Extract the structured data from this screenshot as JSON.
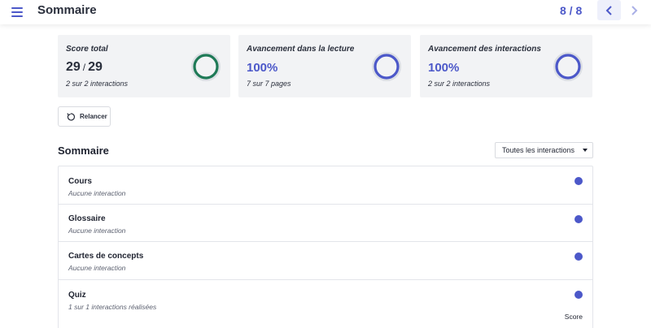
{
  "header": {
    "title": "Sommaire",
    "pager": "8 / 8",
    "menu_icon": "hamburger-menu-icon",
    "prev_icon": "chevron-left-icon",
    "next_icon": "chevron-right-icon"
  },
  "cards": [
    {
      "title": "Score total",
      "value_main": "29",
      "value_sep": "/",
      "value_total": "29",
      "subtitle": "2 sur 2 interactions",
      "ring_color": "#1f7a57",
      "progress": 1.0
    },
    {
      "title": "Avancement dans la lecture",
      "value": "100%",
      "subtitle": "7 sur 7 pages",
      "ring_color": "#4c58c9",
      "progress": 1.0
    },
    {
      "title": "Avancement des interactions",
      "value": "100%",
      "subtitle": "2 sur 2 interactions",
      "ring_color": "#4c58c9",
      "progress": 1.0
    }
  ],
  "relaunch": {
    "label": "Relancer",
    "icon": "restart-icon"
  },
  "summary": {
    "title": "Sommaire",
    "filter": {
      "selected": "Toutes les interactions"
    },
    "items": [
      {
        "title": "Cours",
        "subtitle": "Aucune interaction"
      },
      {
        "title": "Glossaire",
        "subtitle": "Aucune interaction"
      },
      {
        "title": "Cartes de concepts",
        "subtitle": "Aucune interaction"
      },
      {
        "title": "Quiz",
        "subtitle": "1 sur 1 interactions réalisées",
        "score_label": "Score"
      }
    ]
  },
  "colors": {
    "accent": "#4c58c9",
    "success": "#1f7a57",
    "card_bg": "#f2f3f5"
  }
}
